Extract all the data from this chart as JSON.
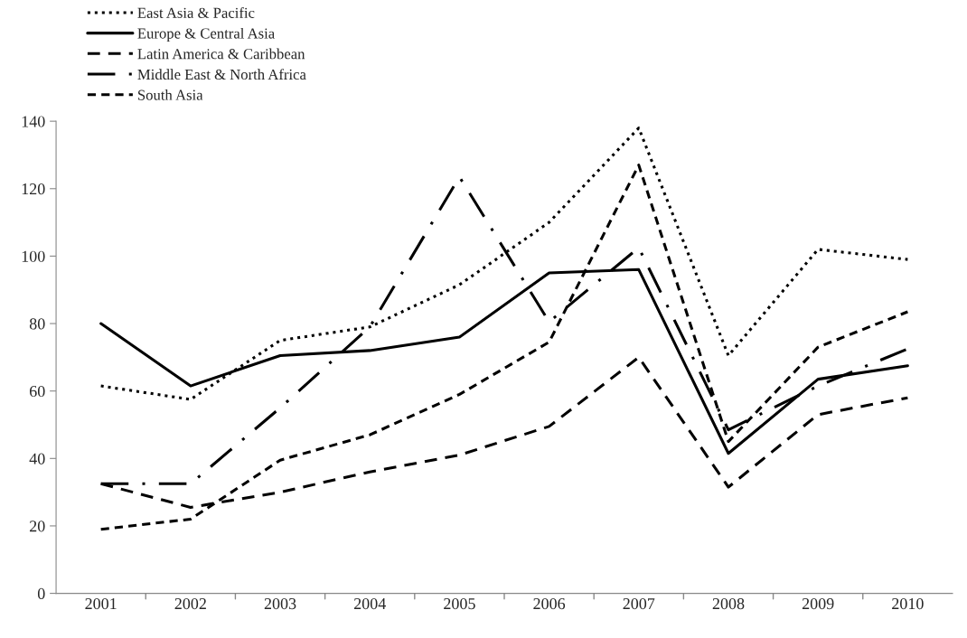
{
  "chart_data": {
    "type": "line",
    "categories": [
      "2001",
      "2002",
      "2003",
      "2004",
      "2005",
      "2006",
      "2007",
      "2008",
      "2009",
      "2010"
    ],
    "series": [
      {
        "name": "East Asia & Pacific",
        "color": "#000000",
        "line_style": "dotted",
        "values": [
          61.5,
          57.5,
          75,
          79,
          91.5,
          110,
          138,
          70.5,
          102,
          99
        ]
      },
      {
        "name": "Europe & Central Asia",
        "color": "#000000",
        "line_style": "solid",
        "values": [
          80,
          61.5,
          70.5,
          72,
          76,
          95,
          96,
          41.5,
          63.5,
          67.5
        ]
      },
      {
        "name": "Latin America & Caribbean",
        "color": "#000000",
        "line_style": "dashed",
        "values": [
          32.5,
          25.5,
          30,
          36,
          41,
          49.5,
          70,
          31.5,
          53,
          58
        ]
      },
      {
        "name": "Middle East & North Africa",
        "color": "#000000",
        "line_style": "dashdot",
        "values": [
          32.5,
          32.5,
          55,
          79,
          123.5,
          80.5,
          102.5,
          48.5,
          61.5,
          72.5
        ]
      },
      {
        "name": "South Asia",
        "color": "#000000",
        "line_style": "shortdash",
        "values": [
          19,
          22,
          39.5,
          47,
          59,
          74.5,
          127,
          45,
          73,
          83.5
        ]
      }
    ],
    "ylim": [
      0,
      140
    ],
    "yticks": [
      0,
      20,
      40,
      60,
      80,
      100,
      120,
      140
    ],
    "grid": false,
    "legend": "top left",
    "marker": "none"
  }
}
